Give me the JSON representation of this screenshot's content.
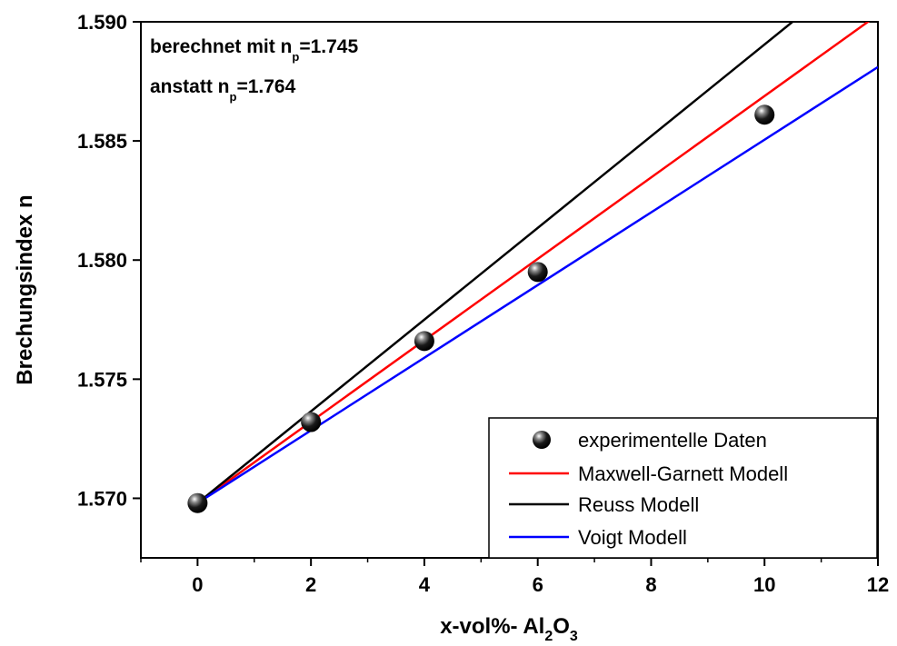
{
  "chart_data": {
    "type": "line",
    "xlabel": {
      "text": "x-vol%- Al",
      "sub1": "2",
      "mid": "O",
      "sub2": "3"
    },
    "ylabel": "Brechungsindex n",
    "xlim": [
      -1,
      12
    ],
    "ylim": [
      1.5675,
      1.59
    ],
    "x_ticks": [
      0,
      2,
      4,
      6,
      8,
      10,
      12
    ],
    "x_tick_labels": [
      "0",
      "2",
      "4",
      "6",
      "8",
      "10",
      "12"
    ],
    "y_ticks": [
      1.57,
      1.575,
      1.58,
      1.585,
      1.59
    ],
    "y_tick_labels": [
      "1.570",
      "1.575",
      "1.580",
      "1.585",
      "1.590"
    ],
    "annotations": [
      {
        "pre": "berechnet mit n",
        "sub": "p",
        "post": "=1.745"
      },
      {
        "pre": "anstatt n",
        "sub": "p",
        "post": "=1.764"
      }
    ],
    "legend_position": "bottom-right",
    "series": [
      {
        "name": "experimentelle Daten",
        "kind": "scatter",
        "color": "#000000",
        "x": [
          0,
          2,
          4,
          6,
          10
        ],
        "y": [
          1.5698,
          1.5732,
          1.5766,
          1.5795,
          1.5861
        ]
      },
      {
        "name": "Maxwell-Garnett Modell",
        "kind": "line",
        "color": "#ff0000",
        "x": [
          0,
          12
        ],
        "y": [
          1.5698,
          1.5903
        ]
      },
      {
        "name": "Reuss Modell",
        "kind": "line",
        "color": "#000000",
        "x": [
          0,
          12
        ],
        "y": [
          1.5698,
          1.5929
        ]
      },
      {
        "name": "Voigt Modell",
        "kind": "line",
        "color": "#0000ff",
        "x": [
          0,
          12
        ],
        "y": [
          1.5698,
          1.5881
        ]
      }
    ]
  }
}
